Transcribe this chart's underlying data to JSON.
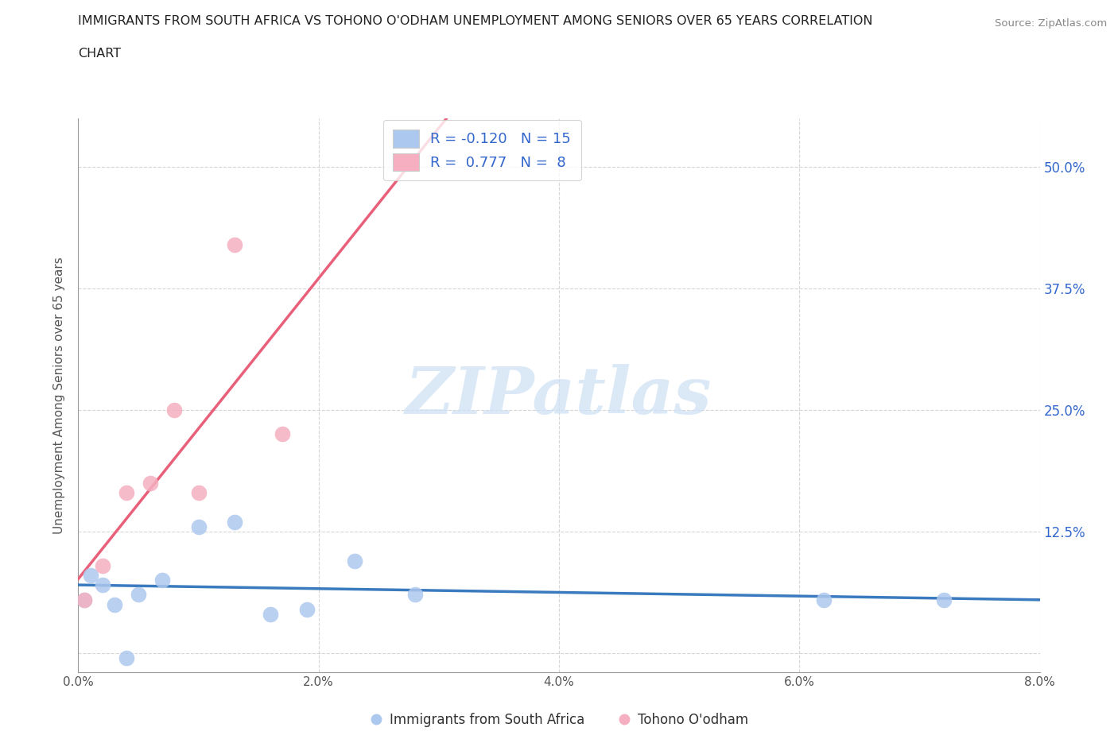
{
  "title_line1": "IMMIGRANTS FROM SOUTH AFRICA VS TOHONO O'ODHAM UNEMPLOYMENT AMONG SENIORS OVER 65 YEARS CORRELATION",
  "title_line2": "CHART",
  "source": "Source: ZipAtlas.com",
  "ylabel": "Unemployment Among Seniors over 65 years",
  "xlabel_blue": "Immigrants from South Africa",
  "xlabel_pink": "Tohono O'odham",
  "R_blue": -0.12,
  "N_blue": 15,
  "R_pink": 0.777,
  "N_pink": 8,
  "blue_color": "#adc8ee",
  "pink_color": "#f5afc0",
  "line_blue": "#3a7abf",
  "line_pink": "#e8607a",
  "text_color": "#3366cc",
  "xlim": [
    0.0,
    0.08
  ],
  "ylim": [
    -0.02,
    0.55
  ],
  "xticks": [
    0.0,
    0.02,
    0.04,
    0.06,
    0.08
  ],
  "xtick_labels": [
    "0.0%",
    "2.0%",
    "4.0%",
    "6.0%",
    "8.0%"
  ],
  "yticks": [
    0.0,
    0.125,
    0.25,
    0.375,
    0.5
  ],
  "ytick_labels": [
    "",
    "12.5%",
    "25.0%",
    "37.5%",
    "50.0%"
  ],
  "blue_scatter_x": [
    0.0005,
    0.001,
    0.002,
    0.003,
    0.004,
    0.005,
    0.007,
    0.01,
    0.013,
    0.016,
    0.019,
    0.023,
    0.028,
    0.062,
    0.072
  ],
  "blue_scatter_y": [
    0.055,
    0.08,
    0.07,
    0.05,
    -0.005,
    0.06,
    0.075,
    0.13,
    0.135,
    0.04,
    0.045,
    0.095,
    0.06,
    0.055,
    0.055
  ],
  "pink_scatter_x": [
    0.0005,
    0.002,
    0.004,
    0.006,
    0.008,
    0.01,
    0.013,
    0.017
  ],
  "pink_scatter_y": [
    0.055,
    0.09,
    0.165,
    0.175,
    0.25,
    0.165,
    0.42,
    0.225
  ],
  "watermark_text": "ZIPatlas",
  "watermark_color": "#cce0f5",
  "background": "#ffffff",
  "grid_color": "#cccccc",
  "grid_style": "--"
}
